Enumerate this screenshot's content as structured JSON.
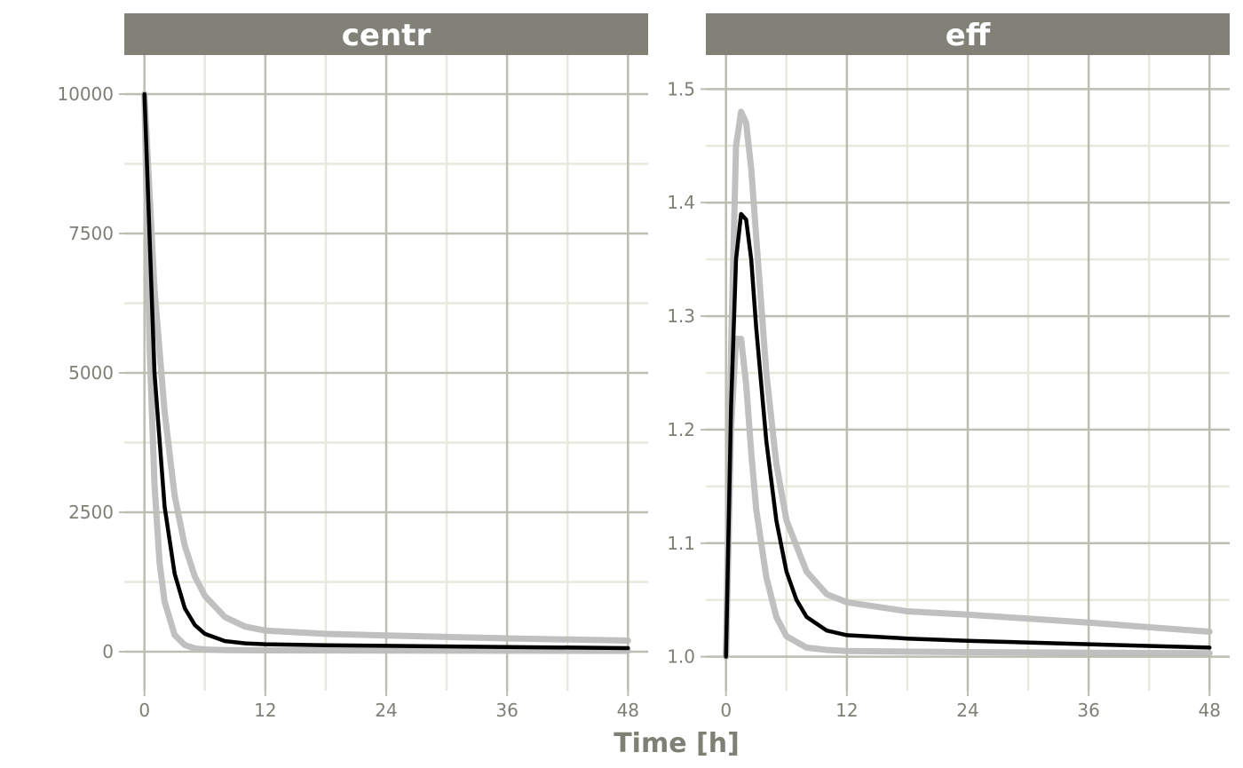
{
  "chart_data": {
    "type": "line",
    "xlabel": "Time [h]",
    "colors": {
      "strip_fill": "#818178",
      "strip_text": "#ffffff",
      "major_grid": "#bdbdb1",
      "minor_grid": "#e8e8dc",
      "band": "#bdbdbd",
      "median": "#000000",
      "tick_text": "#7f7f76"
    },
    "panels": [
      {
        "title": "centr",
        "xlim": [
          -2,
          50
        ],
        "ylim": [
          -700,
          10700
        ],
        "x_ticks": [
          0,
          12,
          24,
          36,
          48
        ],
        "x_tick_labels": [
          "0",
          "12",
          "24",
          "36",
          "48"
        ],
        "y_ticks": [
          0,
          2500,
          5000,
          7500,
          10000
        ],
        "y_tick_labels": [
          "0",
          "2500",
          "5000",
          "7500",
          "10000"
        ],
        "series": [
          {
            "role": "band-upper",
            "x": [
              0,
              1,
              2,
              3,
              4,
              5,
              6,
              8,
              10,
              12,
              18,
              24,
              36,
              48
            ],
            "y": [
              10000,
              6500,
              4300,
              2800,
              1900,
              1350,
              1000,
              620,
              450,
              380,
              320,
              290,
              240,
              200
            ]
          },
          {
            "role": "median",
            "x": [
              0,
              1,
              2,
              3,
              4,
              5,
              6,
              8,
              10,
              12,
              18,
              24,
              36,
              48
            ],
            "y": [
              10000,
              5000,
              2600,
              1400,
              780,
              480,
              320,
              190,
              150,
              135,
              115,
              105,
              85,
              65
            ]
          },
          {
            "role": "band-lower",
            "x": [
              0,
              0.5,
              1,
              1.5,
              2,
              3,
              4,
              5,
              6,
              8,
              12,
              24,
              48
            ],
            "y": [
              10000,
              5500,
              3000,
              1600,
              900,
              300,
              120,
              60,
              40,
              30,
              25,
              20,
              15
            ]
          }
        ]
      },
      {
        "title": "eff",
        "xlim": [
          -2,
          50
        ],
        "ylim": [
          0.97,
          1.53
        ],
        "x_ticks": [
          0,
          12,
          24,
          36,
          48
        ],
        "x_tick_labels": [
          "0",
          "12",
          "24",
          "36",
          "48"
        ],
        "y_ticks": [
          1.0,
          1.1,
          1.2,
          1.3,
          1.4,
          1.5
        ],
        "y_tick_labels": [
          "1.0",
          "1.1",
          "1.2",
          "1.3",
          "1.4",
          "1.5"
        ],
        "series": [
          {
            "role": "band-upper",
            "x": [
              0,
              0.5,
              1,
              1.5,
              2,
              2.5,
              3,
              4,
              5,
              6,
              8,
              10,
              12,
              18,
              24,
              36,
              48
            ],
            "y": [
              1.0,
              1.27,
              1.45,
              1.48,
              1.47,
              1.43,
              1.37,
              1.25,
              1.17,
              1.12,
              1.075,
              1.055,
              1.048,
              1.04,
              1.037,
              1.03,
              1.022
            ]
          },
          {
            "role": "median",
            "x": [
              0,
              0.5,
              1,
              1.5,
              2,
              2.5,
              3,
              4,
              5,
              6,
              7,
              8,
              10,
              12,
              18,
              24,
              36,
              48
            ],
            "y": [
              1.0,
              1.22,
              1.35,
              1.39,
              1.385,
              1.35,
              1.29,
              1.19,
              1.12,
              1.075,
              1.05,
              1.035,
              1.023,
              1.019,
              1.016,
              1.014,
              1.011,
              1.008
            ]
          },
          {
            "role": "band-lower",
            "x": [
              0,
              0.5,
              1,
              1.5,
              2,
              2.5,
              3,
              4,
              5,
              6,
              8,
              10,
              12,
              24,
              48
            ],
            "y": [
              1.0,
              1.2,
              1.28,
              1.28,
              1.24,
              1.18,
              1.13,
              1.07,
              1.035,
              1.018,
              1.008,
              1.006,
              1.005,
              1.004,
              1.003
            ]
          }
        ]
      }
    ]
  }
}
